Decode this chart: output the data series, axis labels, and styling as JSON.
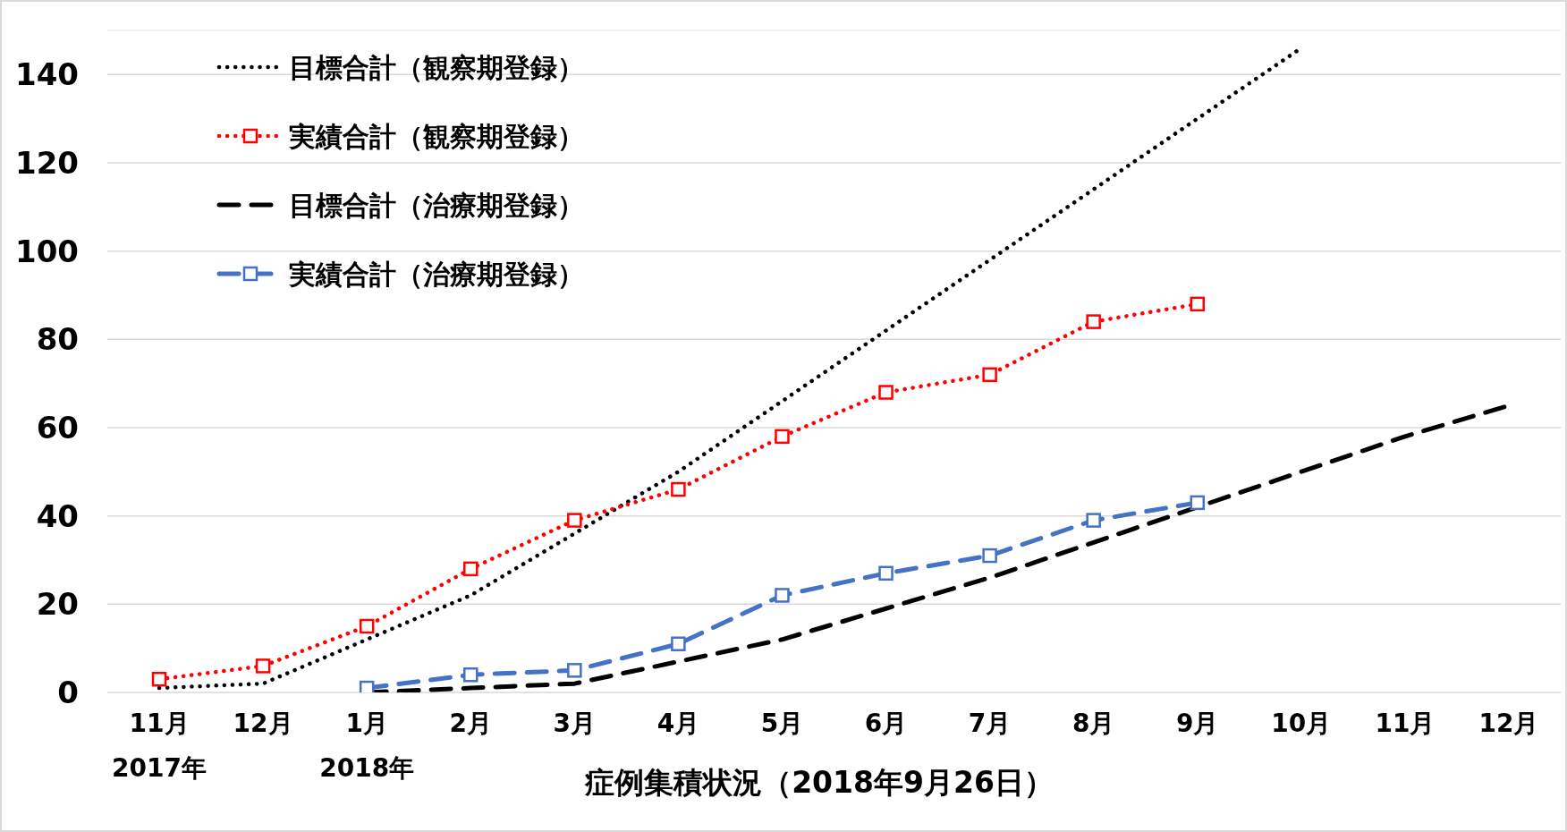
{
  "chart_data": {
    "type": "line",
    "xlabel": "症例集積状況（2018年9月26日）",
    "categories": [
      "11月\n2017年",
      "12月",
      "1月\n2018年",
      "2月",
      "3月",
      "4月",
      "5月",
      "6月",
      "7月",
      "8月",
      "9月",
      "10月",
      "11月",
      "12月"
    ],
    "series": [
      {
        "name": "目標合計（観察期登録）",
        "color": "#000000",
        "line_style": "dotted",
        "marker": "none",
        "values": [
          1,
          2,
          12,
          22,
          36,
          50,
          66,
          82,
          98,
          114,
          130,
          146,
          null,
          null
        ]
      },
      {
        "name": "実績合計（観察期登録）",
        "color": "#ff0000",
        "line_style": "dotted",
        "marker": "square",
        "values": [
          3,
          6,
          15,
          28,
          39,
          46,
          58,
          68,
          72,
          84,
          88,
          null,
          null,
          null
        ]
      },
      {
        "name": "目標合計（治療期登録）",
        "color": "#000000",
        "line_style": "dashed",
        "marker": "none",
        "values": [
          null,
          null,
          0,
          1,
          2,
          7,
          12,
          19,
          26,
          34,
          42,
          50,
          58,
          65
        ]
      },
      {
        "name": "実績合計（治療期登録）",
        "color": "#4472c4",
        "line_style": "dashed",
        "marker": "square",
        "values": [
          null,
          null,
          1,
          4,
          5,
          11,
          22,
          27,
          31,
          39,
          43,
          null,
          null,
          null
        ]
      }
    ],
    "ylim": [
      0,
      150
    ],
    "yticks": [
      0,
      20,
      40,
      60,
      80,
      100,
      120,
      140
    ],
    "grid": "y",
    "legend": "top left"
  }
}
